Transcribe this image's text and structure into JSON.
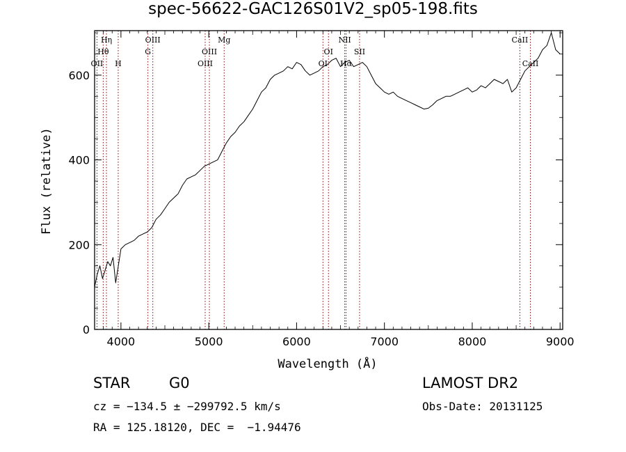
{
  "title": "spec-56622-GAC126S01V2_sp05-198.fits",
  "info": {
    "object_class": "STAR",
    "spectral_type": "G0",
    "survey": "LAMOST DR2",
    "redshift": "cz = −134.5 ± −299792.5 km/s",
    "obs_date": "Obs-Date: 20131125",
    "coordinates": "RA = 125.18120, DEC =  −1.94476"
  },
  "chart_data": {
    "type": "line",
    "title": "spec-56622-GAC126S01V2_sp05-198.fits",
    "xlabel": "Wavelength (Å)",
    "ylabel": "Flux (relative)",
    "xlim": [
      3700,
      9030
    ],
    "ylim": [
      0,
      705
    ],
    "xticks": [
      4000,
      5000,
      6000,
      7000,
      8000,
      9000
    ],
    "yticks": [
      0,
      200,
      400,
      600
    ],
    "grid": false,
    "series": [
      {
        "x": [
          3700,
          3730,
          3760,
          3790,
          3820,
          3850,
          3880,
          3910,
          3940,
          3970,
          4000,
          4050,
          4100,
          4150,
          4200,
          4250,
          4300,
          4350,
          4400,
          4450,
          4500,
          4550,
          4600,
          4650,
          4700,
          4750,
          4800,
          4850,
          4900,
          4950,
          5000,
          5050,
          5100,
          5150,
          5200,
          5250,
          5300,
          5350,
          5400,
          5450,
          5500,
          5550,
          5600,
          5650,
          5700,
          5750,
          5800,
          5850,
          5900,
          5950,
          6000,
          6050,
          6100,
          6150,
          6200,
          6250,
          6300,
          6350,
          6400,
          6450,
          6500,
          6550,
          6600,
          6650,
          6700,
          6750,
          6800,
          6850,
          6900,
          6950,
          7000,
          7050,
          7100,
          7150,
          7200,
          7250,
          7300,
          7350,
          7400,
          7450,
          7500,
          7550,
          7600,
          7650,
          7700,
          7750,
          7800,
          7850,
          7900,
          7950,
          8000,
          8050,
          8100,
          8150,
          8200,
          8250,
          8300,
          8350,
          8400,
          8450,
          8500,
          8550,
          8600,
          8650,
          8700,
          8750,
          8800,
          8850,
          8900,
          8950,
          9000
        ],
        "y": [
          100,
          130,
          150,
          120,
          140,
          160,
          150,
          170,
          110,
          150,
          190,
          200,
          205,
          210,
          220,
          225,
          230,
          240,
          260,
          270,
          285,
          300,
          310,
          320,
          340,
          355,
          360,
          365,
          375,
          385,
          390,
          395,
          400,
          420,
          440,
          455,
          465,
          480,
          490,
          505,
          520,
          540,
          560,
          570,
          590,
          600,
          605,
          610,
          620,
          615,
          630,
          625,
          610,
          600,
          605,
          610,
          620,
          625,
          635,
          640,
          620,
          630,
          635,
          620,
          625,
          630,
          620,
          600,
          580,
          570,
          560,
          555,
          560,
          550,
          545,
          540,
          535,
          530,
          525,
          520,
          522,
          530,
          540,
          545,
          550,
          550,
          555,
          560,
          565,
          570,
          560,
          565,
          575,
          570,
          580,
          590,
          585,
          580,
          590,
          560,
          570,
          590,
          610,
          620,
          630,
          640,
          660,
          670,
          700,
          660,
          650
        ]
      }
    ],
    "annotations": [
      {
        "label": "OII",
        "wavelength": 3727,
        "row": 3
      },
      {
        "label": "Hθ",
        "wavelength": 3798,
        "row": 2
      },
      {
        "label": "Hη",
        "wavelength": 3835,
        "row": 1
      },
      {
        "label": "H",
        "wavelength": 3969,
        "row": 3
      },
      {
        "label": "OIII",
        "wavelength": 4363,
        "row": 1
      },
      {
        "label": "G",
        "wavelength": 4307,
        "row": 2
      },
      {
        "label": "OIII",
        "wavelength": 4959,
        "row": 3
      },
      {
        "label": "OIII",
        "wavelength": 5007,
        "row": 2
      },
      {
        "label": "Mg",
        "wavelength": 5175,
        "row": 1
      },
      {
        "label": "OI",
        "wavelength": 6300,
        "row": 3
      },
      {
        "label": "OI",
        "wavelength": 6363,
        "row": 2
      },
      {
        "label": "NII",
        "wavelength": 6548,
        "row": 1
      },
      {
        "label": "Hα",
        "wavelength": 6563,
        "row": 3
      },
      {
        "label": "SII",
        "wavelength": 6717,
        "row": 2
      },
      {
        "label": "CaII",
        "wavelength": 8542,
        "row": 1
      },
      {
        "label": "CaII",
        "wavelength": 8662,
        "row": 3
      }
    ],
    "line_color": "#000000",
    "marker_color": "#8b0000"
  }
}
